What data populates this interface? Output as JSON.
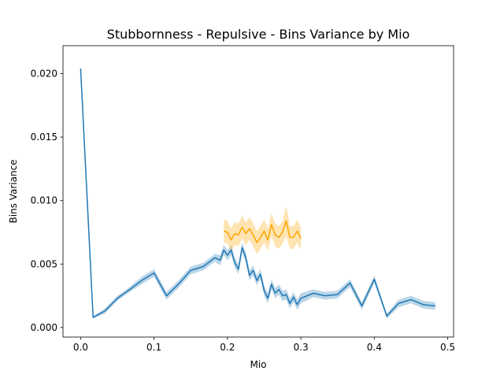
{
  "chart_data": {
    "type": "line",
    "title": "Stubbornness - Repulsive - Bins Variance by Mio",
    "xlabel": "Mio",
    "ylabel": "Bins Variance",
    "xlim": [
      -0.024,
      0.508
    ],
    "ylim": [
      -0.00075,
      0.0222
    ],
    "xticks": [
      0.0,
      0.1,
      0.2,
      0.3,
      0.4,
      0.5
    ],
    "xtick_labels": [
      "0.0",
      "0.1",
      "0.2",
      "0.3",
      "0.4",
      "0.5"
    ],
    "yticks": [
      0.0,
      0.005,
      0.01,
      0.015,
      0.02
    ],
    "ytick_labels": [
      "0.000",
      "0.005",
      "0.010",
      "0.015",
      "0.020"
    ],
    "grid": false,
    "legend": "none",
    "series": [
      {
        "color": "#1f77b4",
        "band_color": "#1f77b4",
        "x": [
          0.0,
          0.017,
          0.033,
          0.05,
          0.067,
          0.083,
          0.1,
          0.117,
          0.133,
          0.15,
          0.167,
          0.183,
          0.19,
          0.195,
          0.2,
          0.205,
          0.21,
          0.215,
          0.22,
          0.225,
          0.23,
          0.235,
          0.24,
          0.245,
          0.25,
          0.255,
          0.26,
          0.265,
          0.27,
          0.275,
          0.28,
          0.285,
          0.29,
          0.295,
          0.3,
          0.317,
          0.333,
          0.35,
          0.367,
          0.383,
          0.4,
          0.417,
          0.433,
          0.45,
          0.467,
          0.483
        ],
        "y": [
          0.0204,
          0.0008,
          0.0013,
          0.0023,
          0.003,
          0.0037,
          0.0043,
          0.0025,
          0.0034,
          0.0045,
          0.0048,
          0.0055,
          0.0053,
          0.0061,
          0.0057,
          0.0061,
          0.0051,
          0.0046,
          0.0063,
          0.0055,
          0.0041,
          0.0045,
          0.0037,
          0.0042,
          0.0029,
          0.0023,
          0.0034,
          0.0027,
          0.003,
          0.0025,
          0.0026,
          0.0019,
          0.0024,
          0.0018,
          0.0023,
          0.0027,
          0.0025,
          0.0026,
          0.0035,
          0.0017,
          0.0038,
          0.0009,
          0.0019,
          0.0022,
          0.0018,
          0.0017
        ],
        "ci": [
          0.0002,
          0.0001,
          0.0002,
          0.0002,
          0.0002,
          0.0003,
          0.0003,
          0.0003,
          0.0003,
          0.0003,
          0.0003,
          0.0003,
          0.0004,
          0.0004,
          0.0004,
          0.0004,
          0.0004,
          0.0004,
          0.0004,
          0.0004,
          0.0004,
          0.0004,
          0.0004,
          0.0004,
          0.0004,
          0.0004,
          0.0004,
          0.0004,
          0.0004,
          0.0004,
          0.0004,
          0.0004,
          0.0004,
          0.0004,
          0.0004,
          0.0003,
          0.0003,
          0.0003,
          0.0003,
          0.0003,
          0.0003,
          0.0002,
          0.0003,
          0.0003,
          0.0003,
          0.0003
        ]
      },
      {
        "color": "#ffa500",
        "band_color": "#ffa500",
        "x": [
          0.195,
          0.2,
          0.205,
          0.21,
          0.215,
          0.22,
          0.225,
          0.23,
          0.235,
          0.24,
          0.245,
          0.25,
          0.255,
          0.26,
          0.265,
          0.27,
          0.275,
          0.28,
          0.285,
          0.29,
          0.295,
          0.3
        ],
        "y": [
          0.0076,
          0.0075,
          0.0069,
          0.0074,
          0.0073,
          0.0079,
          0.0074,
          0.0078,
          0.0073,
          0.0067,
          0.0071,
          0.0076,
          0.0069,
          0.0081,
          0.0073,
          0.0071,
          0.0075,
          0.0084,
          0.0071,
          0.0071,
          0.0076,
          0.007
        ],
        "ci": [
          0.0009,
          0.0009,
          0.0009,
          0.0009,
          0.0009,
          0.0009,
          0.0009,
          0.0009,
          0.0009,
          0.0009,
          0.0009,
          0.0009,
          0.0009,
          0.0009,
          0.0009,
          0.0009,
          0.0009,
          0.0012,
          0.0009,
          0.0009,
          0.0009,
          0.0009
        ]
      }
    ]
  }
}
